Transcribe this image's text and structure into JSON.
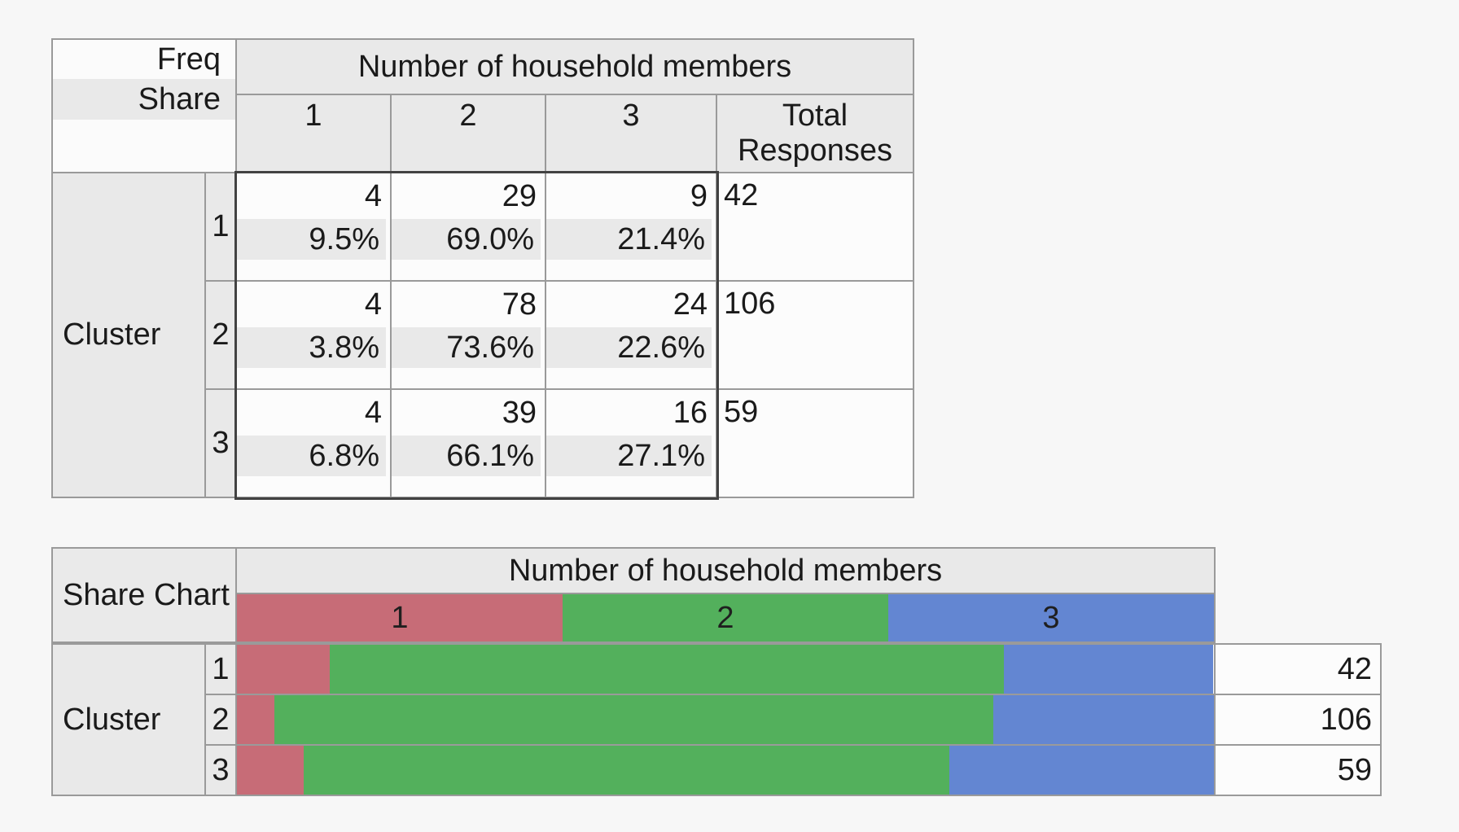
{
  "page": {
    "background": "#f7f7f7"
  },
  "colors": {
    "border_gray": "#9a9a9a",
    "block_border_dark": "#424242",
    "header_gray": "#e9e9e9",
    "cell_white": "#fcfcfc",
    "rose": "#c76c77",
    "green": "#53b05c",
    "blue": "#6386d2"
  },
  "freq_table": {
    "corner": {
      "line1": "Freq",
      "line2": "Share"
    },
    "group_header": "Number of household members",
    "col_headers": [
      "1",
      "2",
      "3"
    ],
    "total_header": [
      "Total",
      "Responses"
    ],
    "row_group_label": "Cluster",
    "rows": [
      {
        "label": "1",
        "freq": [
          "4",
          "29",
          "9"
        ],
        "share": [
          "9.5%",
          "69.0%",
          "21.4%"
        ],
        "total": "42"
      },
      {
        "label": "2",
        "freq": [
          "4",
          "78",
          "24"
        ],
        "share": [
          "3.8%",
          "73.6%",
          "22.6%"
        ],
        "total": "106"
      },
      {
        "label": "3",
        "freq": [
          "4",
          "39",
          "16"
        ],
        "share": [
          "6.8%",
          "66.1%",
          "27.1%"
        ],
        "total": "59"
      }
    ]
  },
  "share_chart": {
    "title": "Share Chart",
    "group_header": "Number of household members",
    "row_group_label": "Cluster",
    "legend": [
      {
        "label": "1",
        "color": "#c76c77"
      },
      {
        "label": "2",
        "color": "#53b05c"
      },
      {
        "label": "3",
        "color": "#6386d2"
      }
    ],
    "rows": [
      {
        "label": "1",
        "segments": [
          9.5,
          69.0,
          21.4
        ],
        "total": "42"
      },
      {
        "label": "2",
        "segments": [
          3.8,
          73.6,
          22.6
        ],
        "total": "106"
      },
      {
        "label": "3",
        "segments": [
          6.8,
          66.1,
          27.1
        ],
        "total": "59"
      }
    ]
  },
  "chart_data": {
    "type": "bar",
    "subtype": "horizontal-stacked-share",
    "title": "Share Chart",
    "group_header": "Number of household members",
    "categories": [
      "Cluster 1",
      "Cluster 2",
      "Cluster 3"
    ],
    "series": [
      {
        "name": "1",
        "color": "#c76c77",
        "counts": [
          4,
          4,
          4
        ],
        "share_pct": [
          9.5,
          3.8,
          6.8
        ]
      },
      {
        "name": "2",
        "color": "#53b05c",
        "counts": [
          29,
          78,
          39
        ],
        "share_pct": [
          69.0,
          73.6,
          66.1
        ]
      },
      {
        "name": "3",
        "color": "#6386d2",
        "counts": [
          9,
          24,
          16
        ],
        "share_pct": [
          21.4,
          22.6,
          27.1
        ]
      }
    ],
    "totals": [
      42,
      106,
      59
    ],
    "xlim": [
      0,
      100
    ],
    "legend_position": "top",
    "grid": false
  }
}
